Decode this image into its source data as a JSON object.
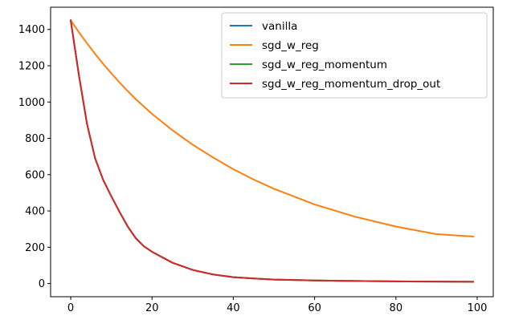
{
  "chart_data": {
    "type": "line",
    "title": "",
    "xlabel": "",
    "ylabel": "",
    "xlim": [
      -4.95,
      103.95
    ],
    "ylim": [
      -72.5,
      1522.5
    ],
    "x_ticks": [
      0,
      20,
      40,
      60,
      80,
      100
    ],
    "y_ticks": [
      0,
      200,
      400,
      600,
      800,
      1000,
      1200,
      1400
    ],
    "grid": false,
    "legend_position": "top-right",
    "x": [
      0,
      2,
      4,
      6,
      8,
      10,
      12,
      14,
      16,
      18,
      20,
      25,
      30,
      35,
      40,
      45,
      50,
      60,
      70,
      80,
      90,
      99
    ],
    "series": [
      {
        "name": "vanilla",
        "color": "#1f77b4",
        "values": [
          1450,
          1150,
          880,
          690,
          570,
          480,
          395,
          315,
          250,
          205,
          175,
          115,
          75,
          50,
          35,
          28,
          22,
          17,
          14,
          12,
          11,
          10
        ]
      },
      {
        "name": "sgd_w_reg",
        "color": "#ff7f0e",
        "values": [
          1450,
          1385,
          1324,
          1265,
          1210,
          1158,
          1108,
          1061,
          1016,
          975,
          935,
          845,
          765,
          695,
          630,
          573,
          522,
          436,
          368,
          314,
          272,
          259
        ]
      },
      {
        "name": "sgd_w_reg_momentum",
        "color": "#2ca02c",
        "values": [
          1450,
          1150,
          880,
          690,
          570,
          480,
          395,
          315,
          250,
          205,
          175,
          115,
          75,
          50,
          35,
          28,
          22,
          17,
          14,
          12,
          11,
          10
        ]
      },
      {
        "name": "sgd_w_reg_momentum_drop_out",
        "color": "#d62728",
        "values": [
          1450,
          1150,
          880,
          690,
          570,
          480,
          395,
          315,
          250,
          205,
          175,
          115,
          75,
          50,
          35,
          28,
          22,
          17,
          14,
          12,
          11,
          10
        ]
      }
    ]
  }
}
